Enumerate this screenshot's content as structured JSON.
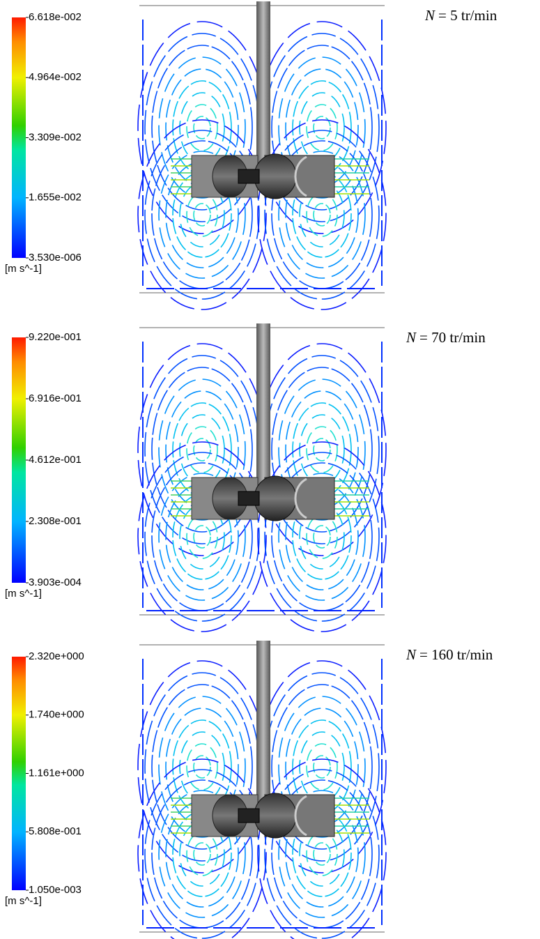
{
  "panels": [
    {
      "colorbar": {
        "ticks": [
          "6.618e-002",
          "4.964e-002",
          "3.309e-002",
          "1.655e-002",
          "3.530e-006"
        ],
        "unit": "[m s^-1]"
      },
      "label": {
        "symbol": "N",
        "text": "= 5 tr/min"
      }
    },
    {
      "colorbar": {
        "ticks": [
          "9.220e-001",
          "6.916e-001",
          "4.612e-001",
          "2.308e-001",
          "3.903e-004"
        ],
        "unit": "[m s^-1]"
      },
      "label": {
        "symbol": "N",
        "text": "= 70 tr/min"
      }
    },
    {
      "colorbar": {
        "ticks": [
          "2.320e+000",
          "1.740e+000",
          "1.161e+000",
          "5.808e-001",
          "1.050e-003"
        ],
        "unit": "[m s^-1]"
      },
      "label": {
        "symbol": "N",
        "text": "= 160 tr/min"
      }
    }
  ]
}
